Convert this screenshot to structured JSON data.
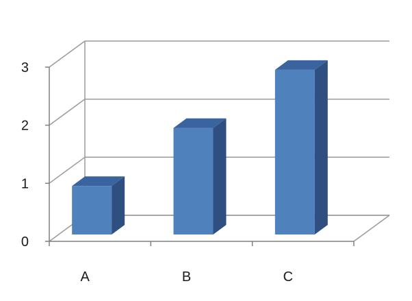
{
  "chart_data": {
    "type": "bar",
    "style": "3d-column",
    "title": "",
    "xlabel": "",
    "ylabel": "",
    "categories": [
      "A",
      "B",
      "C"
    ],
    "values": [
      1,
      2,
      3
    ],
    "ylim": [
      0,
      3
    ],
    "yticks": [
      "0",
      "1",
      "2",
      "3"
    ],
    "grid": true,
    "legend": false,
    "colors": {
      "bar_front": "#4F81BD",
      "bar_side": "#2E4F7F",
      "bar_top": "#3A649F",
      "gridline": "#9a9a9a",
      "axis": "#7f7f7f"
    }
  }
}
